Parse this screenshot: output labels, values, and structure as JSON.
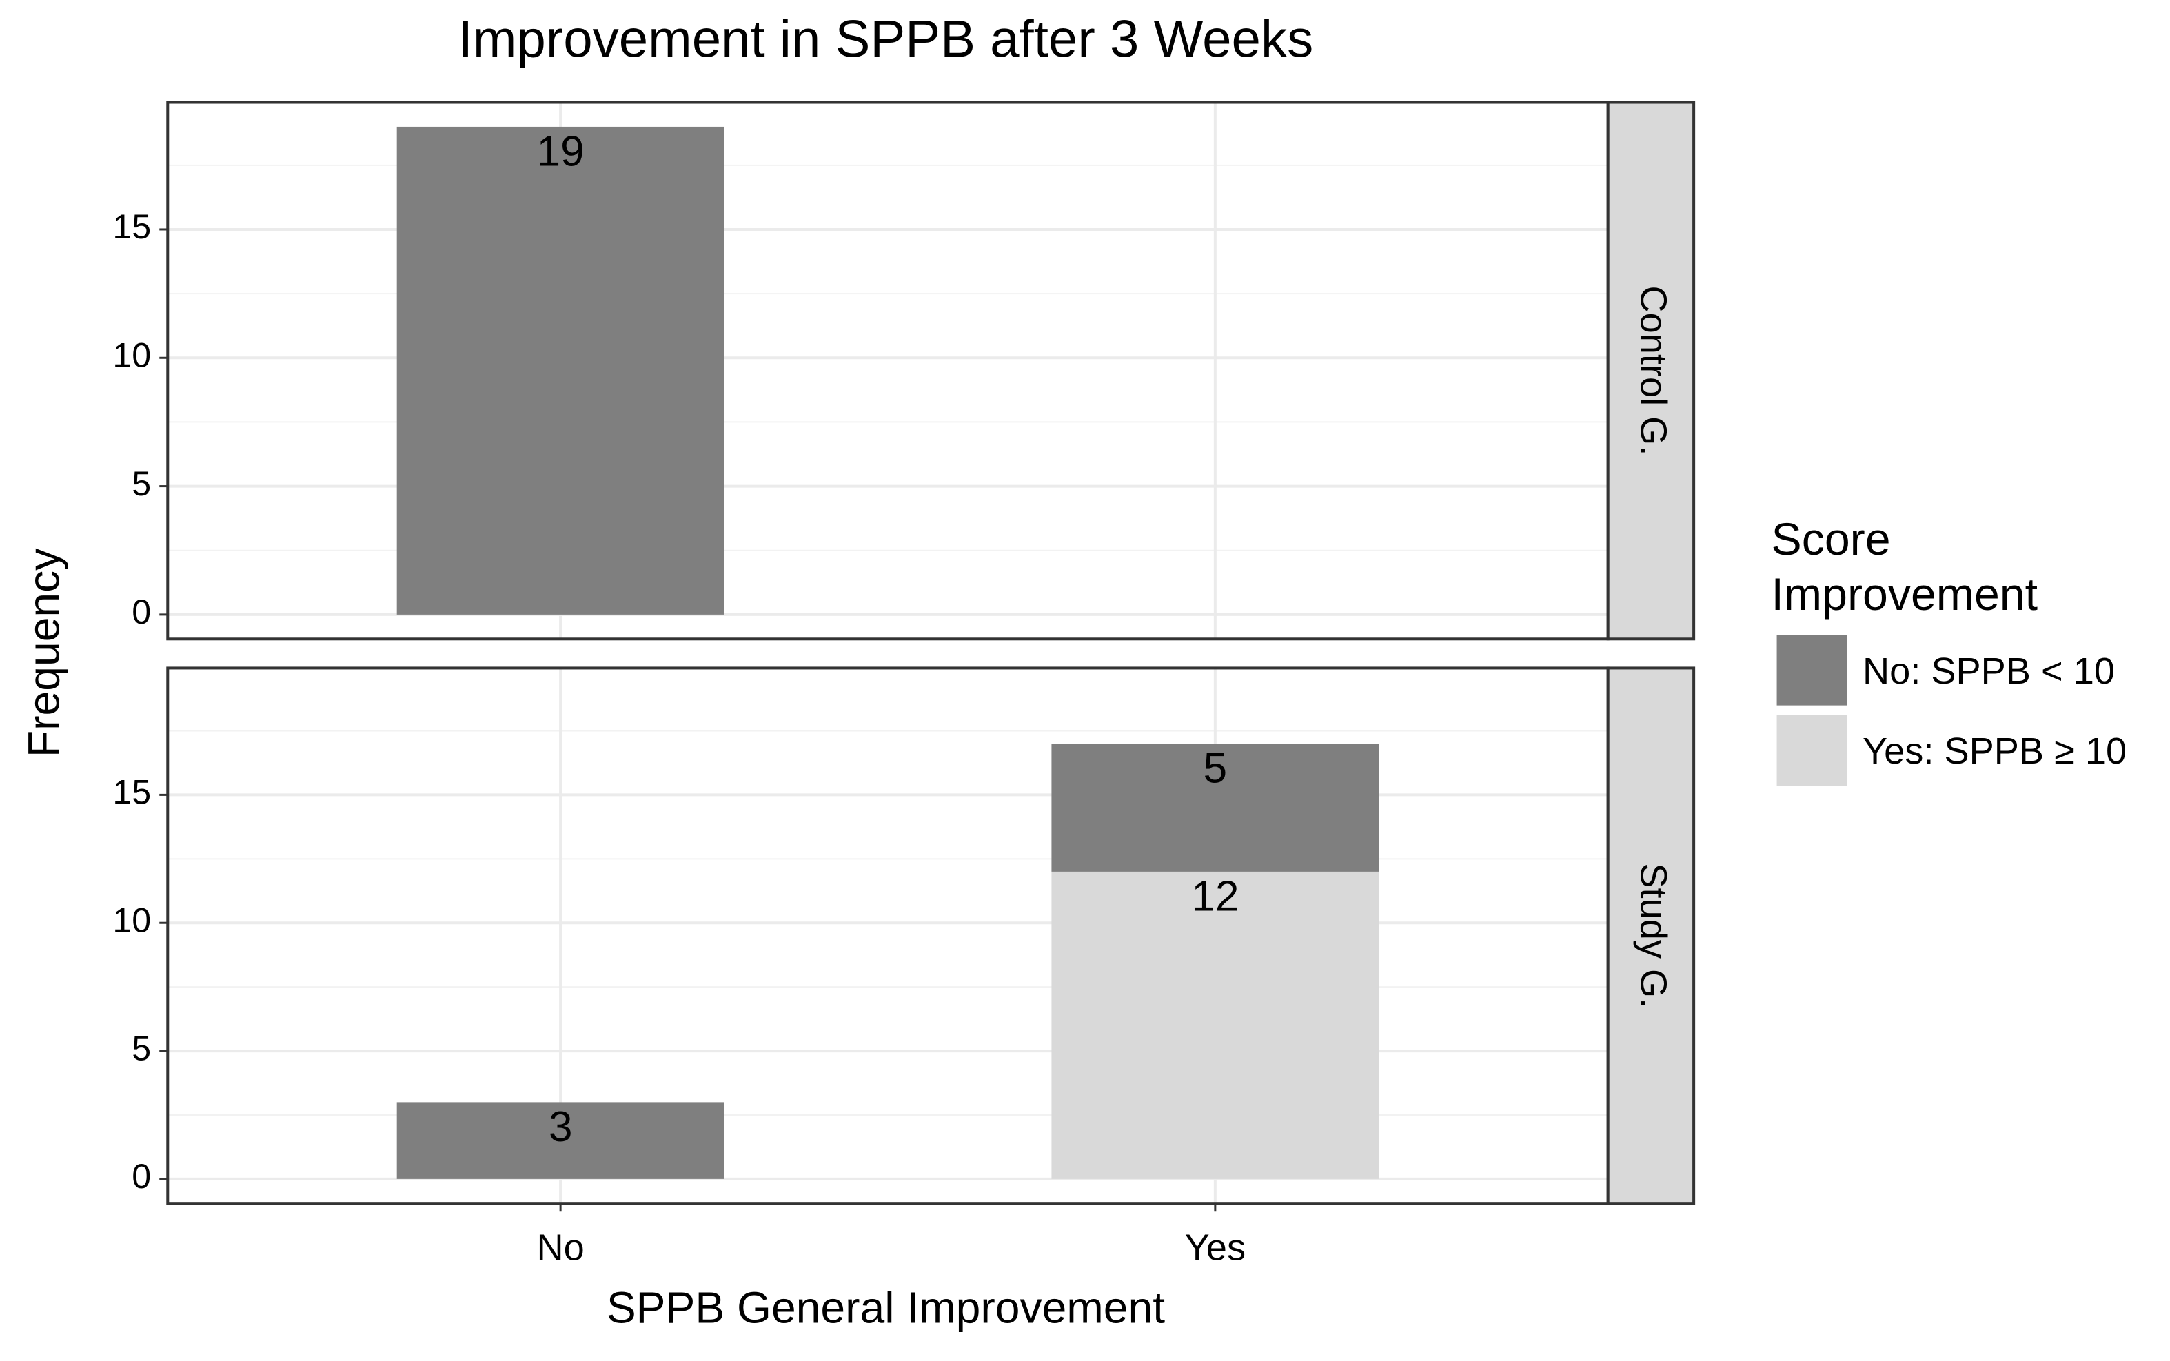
{
  "chart_data": {
    "type": "bar",
    "stacked": true,
    "title": "Improvement in SPPB after 3 Weeks",
    "xlabel": "SPPB General Improvement",
    "ylabel": "Frequency",
    "legend_title": "Score Improvement",
    "categories": [
      "No",
      "Yes"
    ],
    "series": [
      {
        "name": "No: SPPB < 10",
        "color": "#7f7f7f"
      },
      {
        "name": "Yes: SPPB ≥ 10",
        "color": "#d9d9d9"
      }
    ],
    "panels": [
      {
        "label": "Control G.",
        "series": [
          {
            "values": [
              19,
              null
            ]
          },
          {
            "values": [
              null,
              null
            ]
          }
        ]
      },
      {
        "label": "Study G.",
        "series": [
          {
            "values": [
              3,
              5
            ]
          },
          {
            "values": [
              null,
              12
            ]
          }
        ]
      }
    ],
    "ylim": [
      -0.95,
      19.95
    ],
    "yticks": [
      0,
      5,
      10,
      15
    ],
    "grid": true
  }
}
